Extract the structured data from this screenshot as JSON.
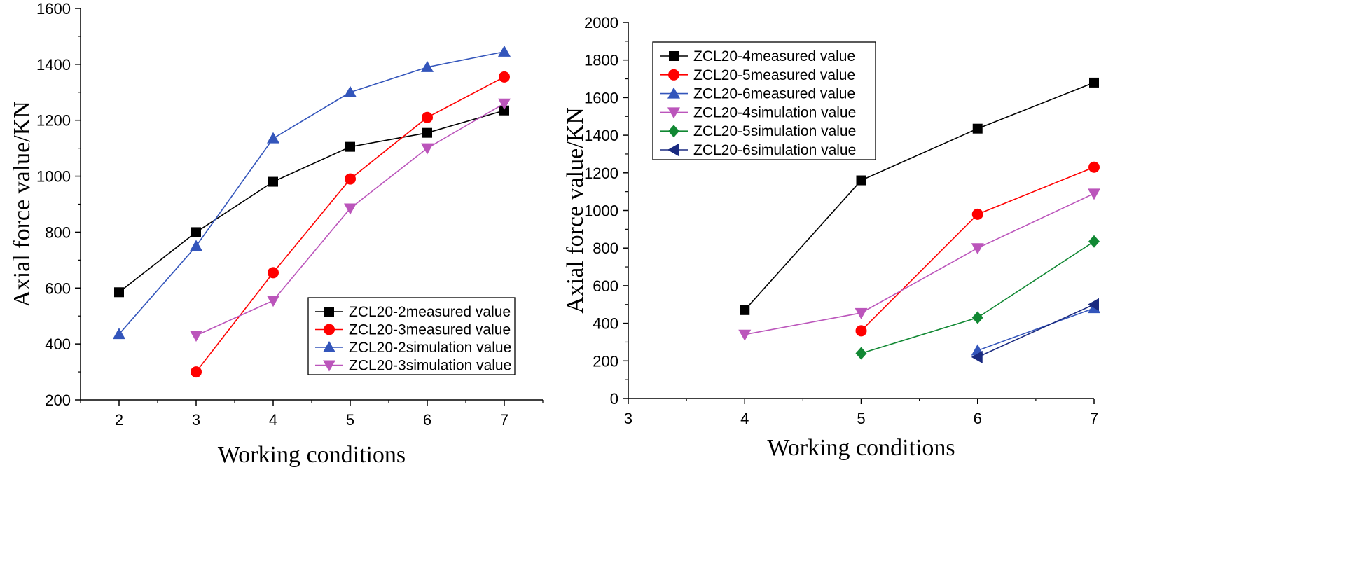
{
  "chart_data": [
    {
      "type": "line",
      "title": "",
      "xlabel": "Working conditions",
      "ylabel": "Axial force value/KN",
      "xlim": [
        1.5,
        7.5
      ],
      "ylim": [
        200,
        1600
      ],
      "xticks": [
        2,
        3,
        4,
        5,
        6,
        7
      ],
      "yticks": [
        200,
        400,
        600,
        800,
        1000,
        1200,
        1400,
        1600
      ],
      "legend_position": "bottom-right",
      "grid": false,
      "series": [
        {
          "name": "ZCL20-2measured value",
          "color": "#000000",
          "marker": "square",
          "x": [
            2,
            3,
            4,
            5,
            6,
            7
          ],
          "values": [
            585,
            800,
            980,
            1105,
            1155,
            1235
          ]
        },
        {
          "name": "ZCL20-3measured value",
          "color": "#ff0000",
          "marker": "circle",
          "x": [
            3,
            4,
            5,
            6,
            7
          ],
          "values": [
            300,
            655,
            990,
            1210,
            1355
          ]
        },
        {
          "name": "ZCL20-2simulation value",
          "color": "#3355bb",
          "marker": "triangle-up",
          "x": [
            2,
            3,
            4,
            5,
            6,
            7
          ],
          "values": [
            435,
            750,
            1135,
            1300,
            1390,
            1445
          ]
        },
        {
          "name": "ZCL20-3simulation value",
          "color": "#bb55bb",
          "marker": "triangle-down",
          "x": [
            3,
            4,
            5,
            6,
            7
          ],
          "values": [
            430,
            555,
            885,
            1100,
            1260
          ]
        }
      ]
    },
    {
      "type": "line",
      "title": "",
      "xlabel": "Working conditions",
      "ylabel": "Axial force value/KN",
      "xlim": [
        3,
        7
      ],
      "ylim": [
        0,
        2000
      ],
      "xticks": [
        3,
        4,
        5,
        6,
        7
      ],
      "yticks": [
        0,
        200,
        400,
        600,
        800,
        1000,
        1200,
        1400,
        1600,
        1800,
        2000
      ],
      "legend_position": "top-left",
      "grid": false,
      "series": [
        {
          "name": "ZCL20-4measured value",
          "color": "#000000",
          "marker": "square",
          "x": [
            4,
            5,
            6,
            7
          ],
          "values": [
            470,
            1160,
            1435,
            1680
          ]
        },
        {
          "name": "ZCL20-5measured value",
          "color": "#ff0000",
          "marker": "circle",
          "x": [
            5,
            6,
            7
          ],
          "values": [
            360,
            980,
            1230
          ]
        },
        {
          "name": "ZCL20-6measured value",
          "color": "#3355bb",
          "marker": "triangle-up",
          "x": [
            6,
            7
          ],
          "values": [
            255,
            480
          ]
        },
        {
          "name": "ZCL20-4simulation value",
          "color": "#bb55bb",
          "marker": "triangle-down",
          "x": [
            4,
            5,
            6,
            7
          ],
          "values": [
            340,
            455,
            800,
            1090
          ]
        },
        {
          "name": "ZCL20-5simulation value",
          "color": "#118833",
          "marker": "diamond",
          "x": [
            5,
            6,
            7
          ],
          "values": [
            240,
            430,
            835
          ]
        },
        {
          "name": "ZCL20-6simulation value",
          "color": "#1a2a80",
          "marker": "triangle-left",
          "x": [
            6,
            7
          ],
          "values": [
            220,
            500
          ]
        }
      ]
    }
  ]
}
